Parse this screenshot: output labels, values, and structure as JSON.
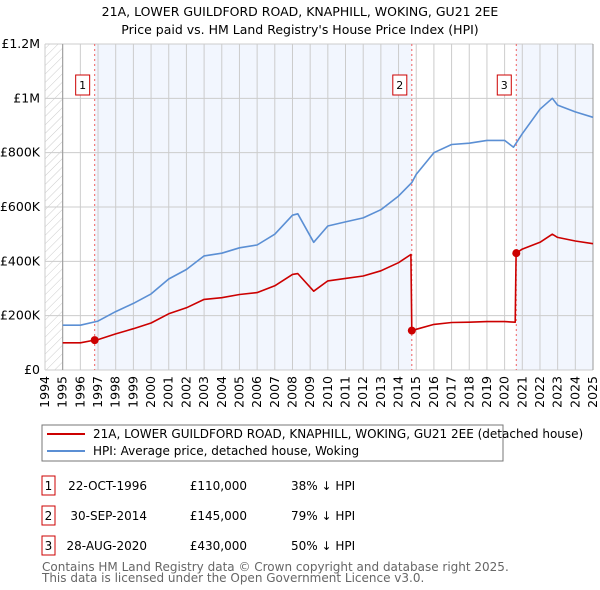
{
  "chart_data": {
    "type": "line",
    "title": "21A, LOWER GUILDFORD ROAD, KNAPHILL, WOKING, GU21 2EE",
    "subtitle": "Price paid vs. HM Land Registry's House Price Index (HPI)",
    "xlim": [
      1994,
      2025
    ],
    "ylim": [
      0,
      1200000
    ],
    "x_ticks": [
      "1994",
      "1995",
      "1996",
      "1997",
      "1998",
      "1999",
      "2000",
      "2001",
      "2002",
      "2003",
      "2004",
      "2005",
      "2006",
      "2007",
      "2008",
      "2009",
      "2010",
      "2011",
      "2012",
      "2013",
      "2014",
      "2015",
      "2016",
      "2017",
      "2018",
      "2019",
      "2020",
      "2021",
      "2022",
      "2023",
      "2024",
      "2025"
    ],
    "y_ticks": [
      {
        "v": 0,
        "label": "£0"
      },
      {
        "v": 200000,
        "label": "£200K"
      },
      {
        "v": 400000,
        "label": "£400K"
      },
      {
        "v": 600000,
        "label": "£600K"
      },
      {
        "v": 800000,
        "label": "£800K"
      },
      {
        "v": 1000000,
        "label": "£1M"
      },
      {
        "v": 1200000,
        "label": "£1.2M"
      }
    ],
    "grid": true,
    "series": [
      {
        "name": "21A, LOWER GUILDFORD ROAD, KNAPHILL, WOKING, GU21 2EE (detached house)",
        "color": "#cc0000",
        "x": [
          1995,
          1996,
          1996.8,
          1997,
          1998,
          1999,
          2000,
          2001,
          2002,
          2003,
          2004,
          2005,
          2006,
          2007,
          2008,
          2008.3,
          2009.2,
          2010,
          2011,
          2012,
          2013,
          2014,
          2014.7,
          2014.75,
          2015,
          2016,
          2017,
          2018,
          2019,
          2020,
          2020.6,
          2020.65,
          2021,
          2022,
          2022.7,
          2023,
          2024,
          2025
        ],
        "y": [
          100000,
          100000,
          110000,
          112000,
          133000,
          152000,
          173000,
          207000,
          229000,
          260000,
          266000,
          278000,
          285000,
          310000,
          352000,
          355000,
          290000,
          328000,
          337000,
          346000,
          365000,
          395000,
          425000,
          145000,
          150000,
          168000,
          175000,
          176000,
          178000,
          178000,
          176000,
          430000,
          445000,
          470000,
          500000,
          488000,
          475000,
          465000
        ]
      },
      {
        "name": "HPI: Average price, detached house, Woking",
        "color": "#5b8fd4",
        "x": [
          1995,
          1996,
          1997,
          1998,
          1999,
          2000,
          2001,
          2002,
          2003,
          2004,
          2005,
          2006,
          2007,
          2008,
          2008.3,
          2009.2,
          2010,
          2011,
          2012,
          2013,
          2014,
          2014.75,
          2015,
          2016,
          2017,
          2018,
          2019,
          2020,
          2020.5,
          2021,
          2022,
          2022.7,
          2023,
          2024,
          2025
        ],
        "y": [
          165000,
          165000,
          180000,
          215000,
          245000,
          280000,
          335000,
          370000,
          420000,
          430000,
          450000,
          460000,
          500000,
          570000,
          575000,
          470000,
          530000,
          545000,
          560000,
          590000,
          640000,
          690000,
          720000,
          800000,
          830000,
          835000,
          845000,
          845000,
          820000,
          870000,
          960000,
          1000000,
          975000,
          950000,
          930000
        ]
      }
    ],
    "sales": [
      {
        "n": "1",
        "x": 1996.81,
        "price": 110000,
        "date": "22-OCT-1996",
        "price_label": "£110,000",
        "hpi_diff": "38% ↓ HPI"
      },
      {
        "n": "2",
        "x": 2014.75,
        "price": 145000,
        "date": "30-SEP-2014",
        "price_label": "£145,000",
        "hpi_diff": "79% ↓ HPI"
      },
      {
        "n": "3",
        "x": 2020.66,
        "price": 430000,
        "date": "28-AUG-2020",
        "price_label": "£430,000",
        "hpi_diff": "50% ↓ HPI"
      }
    ],
    "legend_placement": "bottom"
  },
  "footer": {
    "line1": "Contains HM Land Registry data © Crown copyright and database right 2025.",
    "line2": "This data is licensed under the Open Government Licence v3.0."
  }
}
